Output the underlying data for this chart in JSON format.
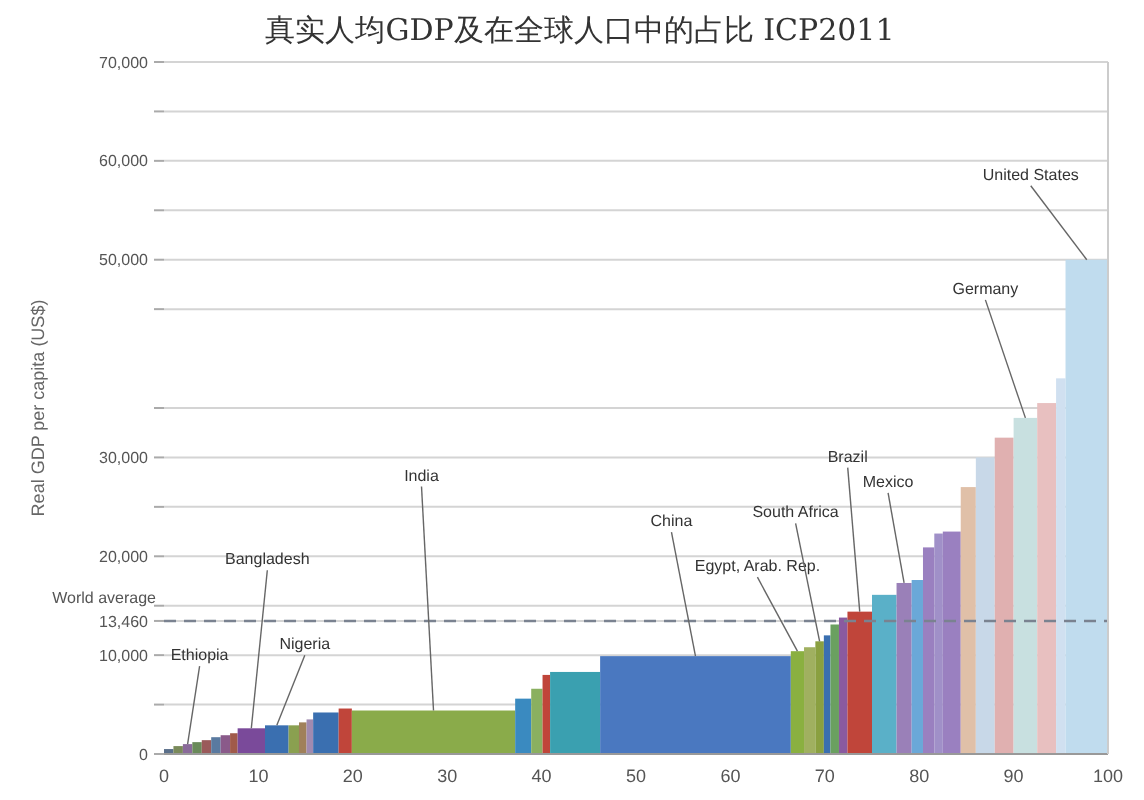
{
  "chart_data": {
    "type": "bar",
    "title": "真实人均GDP及在全球人口中的占比 ICP2011",
    "ylabel": "Real GDP per capita (US$)",
    "x": [
      0.5,
      1.5,
      2.5,
      3.5,
      4.5,
      5.5,
      6.5,
      7.4,
      9.25,
      11.95,
      13.75,
      14.7,
      15.45,
      17.15,
      19.2,
      28.55,
      38.05,
      39.5,
      40.5,
      43.55,
      56.3,
      67.1,
      68.4,
      69.45,
      70.25,
      71.05,
      71.95,
      73.7,
      76.3,
      78.4,
      79.8,
      81,
      82.05,
      83.45,
      85.2,
      87,
      89,
      91.25,
      93.5,
      95,
      97.75
    ],
    "values": [
      500,
      800,
      1000,
      1200,
      1400,
      1700,
      1900,
      2100,
      2600,
      2900,
      2900,
      3200,
      3500,
      4200,
      4600,
      4400,
      5600,
      6600,
      8000,
      8300,
      9900,
      10400,
      10800,
      11400,
      12000,
      13100,
      13800,
      14400,
      16100,
      17300,
      17600,
      20900,
      22300,
      22500,
      27000,
      30000,
      32000,
      34000,
      35500,
      38000,
      50000
    ],
    "colors": [
      "#5a6f8a",
      "#7a8a5a",
      "#8a6a9a",
      "#6a8a5a",
      "#9a5a5a",
      "#5a7aa0",
      "#8a5a8a",
      "#a05a4a",
      "#7a4a9a",
      "#3a6fb0",
      "#8aa050",
      "#a0805a",
      "#a08ab0",
      "#3a6fb0",
      "#c0453a",
      "#8aab4a",
      "#3a8ac0",
      "#8ab060",
      "#c0453a",
      "#3aa0b0",
      "#4a78c0",
      "#8ab040",
      "#a0b060",
      "#8aa040",
      "#3a6fb0",
      "#6aa060",
      "#8a5aa0",
      "#c0453a",
      "#5ab0c8",
      "#9a80b8",
      "#6aa8d8",
      "#9a80c0",
      "#a090c8",
      "#9a80c0",
      "#e0c0a8",
      "#c8d8e8",
      "#e0b0b0",
      "#c8e0e0",
      "#e8c0c0",
      "#d0e0f0",
      "#c0dcee"
    ],
    "xlim": [
      0,
      100
    ],
    "xticks": [
      0,
      10,
      20,
      30,
      40,
      50,
      60,
      70,
      80,
      90,
      100
    ],
    "ylim": [
      0,
      70000
    ],
    "yticks": [
      0,
      {
        "value": 5000,
        "label": null
      },
      {
        "value": 10000,
        "label": "10,000"
      },
      {
        "value": 13460,
        "label": "13,460"
      },
      {
        "value": 15000,
        "label": null
      },
      {
        "value": 20000,
        "label": "20,000"
      },
      {
        "value": 25000,
        "label": null
      },
      {
        "value": 30000,
        "label": "30,000"
      },
      {
        "value": 35000,
        "label": null
      },
      {
        "value": 45000,
        "label": null
      },
      {
        "value": 50000,
        "label": "50,000"
      },
      {
        "value": 55000,
        "label": null
      },
      {
        "value": 60000,
        "label": "60,000"
      },
      {
        "value": 65000,
        "label": null
      },
      {
        "value": 70000,
        "label": "70,000"
      }
    ],
    "grid": "y",
    "ref_lines": [
      {
        "axis": "y",
        "value": 13460,
        "label": "World average",
        "color": "#7a8290",
        "line_style": "dashed"
      }
    ],
    "annotations": [
      {
        "text": "Ethiopia",
        "x": 2.5,
        "y": 1000
      },
      {
        "text": "Bangladesh",
        "x": 9.25,
        "y": 2600
      },
      {
        "text": "Nigeria",
        "x": 11.95,
        "y": 2900
      },
      {
        "text": "India",
        "x": 28.55,
        "y": 4400
      },
      {
        "text": "China",
        "x": 56.3,
        "y": 9900
      },
      {
        "text": "Egypt, Arab. Rep.",
        "x": 67.1,
        "y": 10400
      },
      {
        "text": "South Africa",
        "x": 69.45,
        "y": 11400
      },
      {
        "text": "Brazil",
        "x": 73.7,
        "y": 14400
      },
      {
        "text": "Mexico",
        "x": 78.4,
        "y": 17300
      },
      {
        "text": "Germany",
        "x": 91.25,
        "y": 34000
      },
      {
        "text": "United States",
        "x": 97.75,
        "y": 50000
      }
    ]
  }
}
